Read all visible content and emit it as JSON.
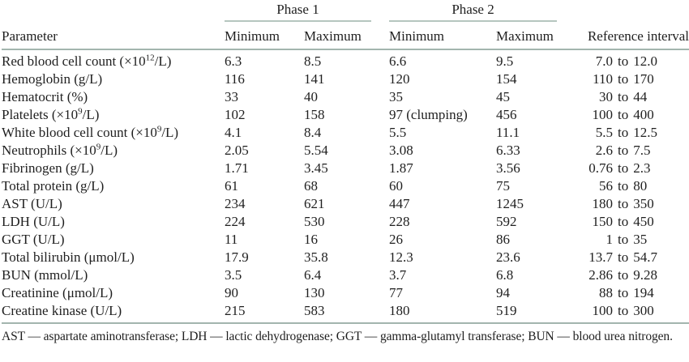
{
  "table": {
    "phase1_label": "Phase 1",
    "phase2_label": "Phase 2",
    "columns": {
      "parameter": "Parameter",
      "p1_min": "Minimum",
      "p1_max": "Maximum",
      "p2_min": "Minimum",
      "p2_max": "Maximum",
      "reference": "Reference interval"
    },
    "rows": [
      {
        "parameter": "Red blood cell count (×10^12/L)",
        "p1_min": "6.3",
        "p1_max": "8.5",
        "p2_min": "6.6",
        "p2_max": "9.5",
        "reference": "7.0 to 12.0"
      },
      {
        "parameter": "Hemoglobin (g/L)",
        "p1_min": "116",
        "p1_max": "141",
        "p2_min": "120",
        "p2_max": "154",
        "reference": "110 to 170"
      },
      {
        "parameter": "Hematocrit (%)",
        "p1_min": "33",
        "p1_max": "40",
        "p2_min": "35",
        "p2_max": "45",
        "reference": "30 to 44"
      },
      {
        "parameter": "Platelets (×10^9/L)",
        "p1_min": "102",
        "p1_max": "158",
        "p2_min": "97 (clumping)",
        "p2_max": "456",
        "reference": "100 to 400"
      },
      {
        "parameter": "White blood cell count (×10^9/L)",
        "p1_min": "4.1",
        "p1_max": "8.4",
        "p2_min": "5.5",
        "p2_max": "11.1",
        "reference": "5.5 to 12.5"
      },
      {
        "parameter": "Neutrophils (×10^9/L)",
        "p1_min": "2.05",
        "p1_max": "5.54",
        "p2_min": "3.08",
        "p2_max": "6.33",
        "reference": "2.6 to 7.5"
      },
      {
        "parameter": "Fibrinogen (g/L)",
        "p1_min": "1.71",
        "p1_max": "3.45",
        "p2_min": "1.87",
        "p2_max": "3.56",
        "reference": "0.76 to 2.3"
      },
      {
        "parameter": "Total protein (g/L)",
        "p1_min": "61",
        "p1_max": "68",
        "p2_min": "60",
        "p2_max": "75",
        "reference": "56 to 80"
      },
      {
        "parameter": "AST (U/L)",
        "p1_min": "234",
        "p1_max": "621",
        "p2_min": "447",
        "p2_max": "1245",
        "reference": "180 to 350"
      },
      {
        "parameter": "LDH (U/L)",
        "p1_min": "224",
        "p1_max": "530",
        "p2_min": "228",
        "p2_max": "592",
        "reference": "150 to 450"
      },
      {
        "parameter": "GGT (U/L)",
        "p1_min": "11",
        "p1_max": "16",
        "p2_min": "26",
        "p2_max": "86",
        "reference": "1 to 35"
      },
      {
        "parameter": "Total bilirubin (μmol/L)",
        "p1_min": "17.9",
        "p1_max": "35.8",
        "p2_min": "12.3",
        "p2_max": "23.6",
        "reference": "13.7 to 54.7"
      },
      {
        "parameter": "BUN (mmol/L)",
        "p1_min": "3.5",
        "p1_max": "6.4",
        "p2_min": "3.7",
        "p2_max": "6.8",
        "reference": "2.86 to 9.28"
      },
      {
        "parameter": "Creatinine (μmol/L)",
        "p1_min": "90",
        "p1_max": "130",
        "p2_min": "77",
        "p2_max": "94",
        "reference": "88 to 194"
      },
      {
        "parameter": "Creatine kinase (U/L)",
        "p1_min": "215",
        "p1_max": "583",
        "p2_min": "180",
        "p2_max": "519",
        "reference": "100 to 300"
      }
    ]
  },
  "footnote": "AST — aspartate aminotransferase; LDH — lactic dehydrogenase; GGT — gamma-glutamyl transferase; BUN — blood urea nitrogen.",
  "colors": {
    "rule": "#a3b5ae",
    "group_rule": "#b5c6bf",
    "text": "#1f1f1f"
  }
}
